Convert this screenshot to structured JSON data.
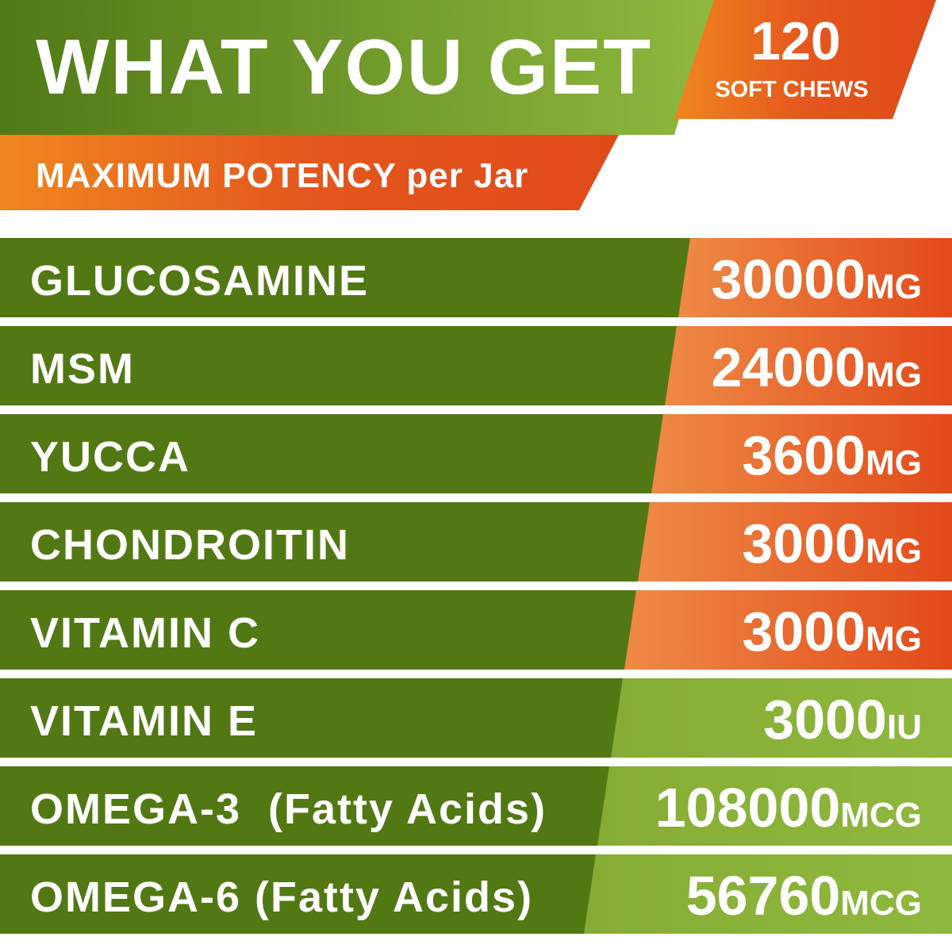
{
  "header": {
    "title": "WHAT YOU GET",
    "subtitle": "MAXIMUM POTENCY per Jar",
    "badge": {
      "count": 120,
      "label": "SOFT CHEWS"
    }
  },
  "table": {
    "rows": [
      {
        "name": "GLUCOSAMINE",
        "amount": 30000,
        "unit": "MG"
      },
      {
        "name": "MSM",
        "amount": 24000,
        "unit": "MG"
      },
      {
        "name": "YUCCA",
        "amount": 3600,
        "unit": "MG"
      },
      {
        "name": "CHONDROITIN",
        "amount": 3000,
        "unit": "MG"
      },
      {
        "name": "VITAMIN C",
        "amount": 3000,
        "unit": "MG"
      },
      {
        "name": "VITAMIN E",
        "amount": 3000,
        "unit": "IU"
      },
      {
        "name": "OMEGA-3  (Fatty Acids)",
        "amount": 108000,
        "unit": "MCG"
      },
      {
        "name": "OMEGA-6 (Fatty Acids)",
        "amount": 56760,
        "unit": "MCG"
      }
    ]
  }
}
